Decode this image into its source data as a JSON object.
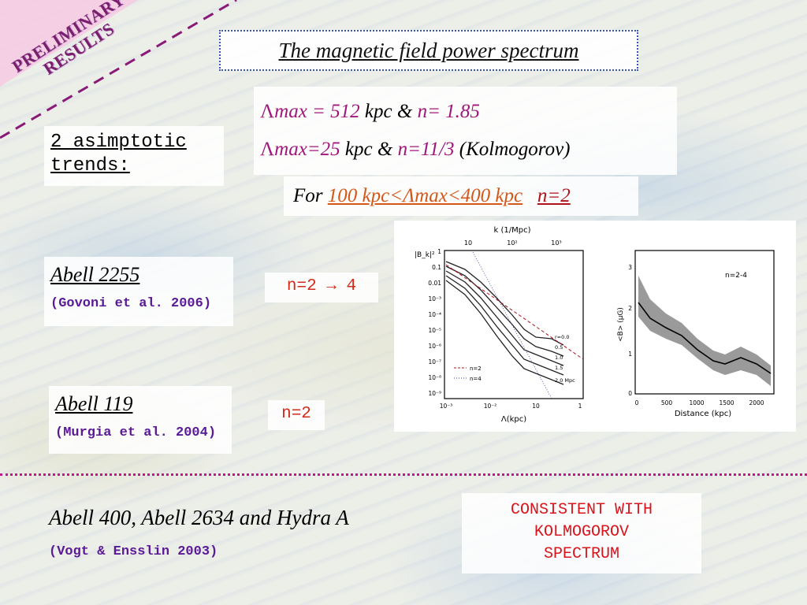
{
  "corner": {
    "line1": "PRELIMINARY",
    "line2": "RESULTS"
  },
  "title": "The magnetic field power spectrum",
  "trends": {
    "line1": "2 asimptotic",
    "line2": "trends:"
  },
  "lambda_lines": [
    {
      "symbol": "Λ",
      "max": "max = 512",
      "unit": " kpc & ",
      "n": "n= 1.85",
      "note": ""
    },
    {
      "symbol": "Λ",
      "max": "max=25",
      "unit": " kpc & ",
      "n": "n=11/3",
      "note": " (Kolmogorov)"
    }
  ],
  "for_line": {
    "prefix": "For ",
    "range": "100 kpc<Λmax<400 kpc",
    "n": "n=2"
  },
  "abell2255": {
    "name": "Abell 2255",
    "ref": "(Govoni et al. 2006)",
    "n": "n=2 → 4"
  },
  "abell119": {
    "name": "Abell 119",
    "ref": "(Murgia et al. 2004)",
    "n": "n=2"
  },
  "bottom": {
    "name": "Abell 400, Abell 2634 and Hydra A",
    "ref": "(Vogt & Ensslin 2003)"
  },
  "conclusion": {
    "line1": "CONSISTENT WITH",
    "line2": "KOLMOGOROV",
    "line3": "SPECTRUM"
  },
  "plot_left": {
    "top_axis_title": "k (1/Mpc)",
    "top_ticks": [
      "10",
      "10²",
      "10³"
    ],
    "ylabel": "|B_k|²",
    "y_ticks": [
      "1",
      "0.1",
      "0.01",
      "10⁻³",
      "10⁻⁴",
      "10⁻⁵",
      "10⁻⁶",
      "10⁻⁷",
      "10⁻⁸",
      "10⁻⁹"
    ],
    "x_ticks": [
      "10⁻³",
      "10⁻²",
      "10",
      "1"
    ],
    "xlabel": "Λ(kpc)",
    "legend": [
      "n=2",
      "n=4"
    ],
    "curve_labels": [
      "r=0.0",
      "0.5",
      "1.0",
      "1.5",
      "2.0 Mpc"
    ]
  },
  "plot_right": {
    "annotation": "n=2-4",
    "ylabel": "<B> (μG)",
    "xlabel": "Distance (kpc)",
    "y_ticks": [
      "0",
      "1",
      "2",
      "3"
    ],
    "x_ticks": [
      "0",
      "500",
      "1000",
      "1500",
      "2000"
    ]
  }
}
